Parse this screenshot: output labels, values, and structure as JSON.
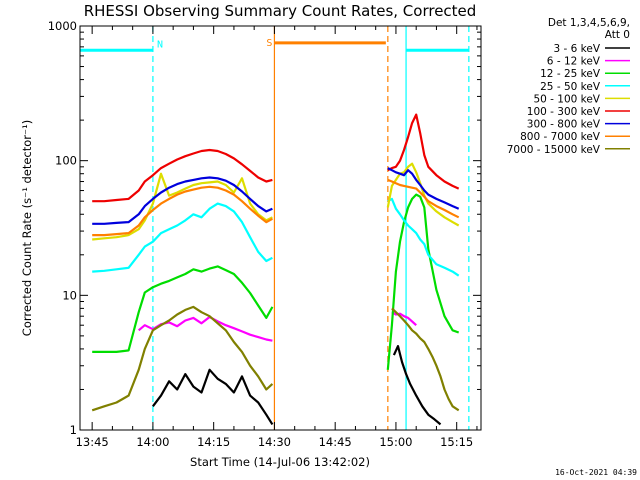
{
  "chart_data": {
    "type": "line",
    "title": "RHESSI Observing Summary Count Rates, Corrected",
    "xlabel": "Start Time (14-Jul-06 13:42:02)",
    "ylabel": "Corrected Count Rate (s⁻¹ detector⁻¹)",
    "yscale": "log",
    "ylim": [
      1,
      1000
    ],
    "xlim": [
      -3,
      96
    ],
    "x_unit": "minutes after 13:45",
    "xticks": [
      {
        "value": 0,
        "label": "13:45"
      },
      {
        "value": 15,
        "label": "14:00"
      },
      {
        "value": 30,
        "label": "14:15"
      },
      {
        "value": 45,
        "label": "14:30"
      },
      {
        "value": 60,
        "label": "14:45"
      },
      {
        "value": 75,
        "label": "15:00"
      },
      {
        "value": 90,
        "label": "15:15"
      }
    ],
    "yticks": [
      {
        "value": 1,
        "label": "1"
      },
      {
        "value": 10,
        "label": "10"
      },
      {
        "value": 100,
        "label": "100"
      },
      {
        "value": 1000,
        "label": "1000"
      }
    ],
    "legend_title": "Det 1,3,4,5,6,9,",
    "legend_subtitle": "Att 0",
    "legend_placement": "right",
    "series": [
      {
        "name": "3 - 6 keV",
        "color": "#000000",
        "segments": [
          {
            "x": [
              15,
              17,
              19,
              21,
              23,
              25,
              27,
              29,
              31,
              33,
              35,
              37,
              39,
              41,
              43,
              44.5
            ],
            "y": [
              1.5,
              1.8,
              2.3,
              2.0,
              2.6,
              2.1,
              1.9,
              2.8,
              2.4,
              2.2,
              1.9,
              2.5,
              1.8,
              1.6,
              1.3,
              1.1
            ]
          },
          {
            "x": [
              74.5,
              75.5,
              76.5,
              77.5,
              78.5,
              80,
              81.5,
              83,
              84.5,
              86
            ],
            "y": [
              3.6,
              4.2,
              3.2,
              2.6,
              2.2,
              1.8,
              1.5,
              1.3,
              1.2,
              1.1
            ]
          }
        ]
      },
      {
        "name": "6 - 12 keV",
        "color": "#ff00ff",
        "segments": [
          {
            "x": [
              11.5,
              13,
              15,
              17,
              19,
              21,
              23,
              25,
              27,
              29,
              31,
              33,
              35,
              37,
              39,
              41,
              43,
              44.5
            ],
            "y": [
              5.5,
              6.0,
              5.6,
              6.1,
              6.3,
              5.9,
              6.5,
              6.8,
              6.2,
              6.9,
              6.4,
              6.0,
              5.7,
              5.4,
              5.1,
              4.9,
              4.7,
              4.6
            ]
          },
          {
            "x": [
              74,
              75,
              76,
              77,
              78,
              79,
              80
            ],
            "y": [
              7.5,
              7.2,
              7.3,
              7.0,
              6.8,
              6.4,
              6.0
            ]
          }
        ]
      },
      {
        "name": "12 - 25 keV",
        "color": "#00dd00",
        "segments": [
          {
            "x": [
              0,
              3,
              6,
              9,
              11.5,
              13,
              15,
              17,
              19,
              21,
              23,
              25,
              27,
              29,
              31,
              33,
              35,
              37,
              39,
              41,
              43,
              44.5
            ],
            "y": [
              3.8,
              3.8,
              3.8,
              3.9,
              7.5,
              10.5,
              11.5,
              12.2,
              12.8,
              13.6,
              14.4,
              15.6,
              15.0,
              15.8,
              16.4,
              15.4,
              14.4,
              12.4,
              10.4,
              8.4,
              6.8,
              8.2
            ]
          },
          {
            "x": [
              73,
              74,
              75,
              76,
              77,
              78,
              79,
              80,
              81,
              82,
              83,
              85,
              87,
              89,
              90.5
            ],
            "y": [
              2.8,
              6.0,
              15.0,
              25.0,
              35.0,
              45.0,
              52.0,
              56.0,
              54.0,
              45.0,
              22.0,
              11.0,
              7.0,
              5.5,
              5.3
            ]
          }
        ]
      },
      {
        "name": "25 - 50 keV",
        "color": "#00ffff",
        "segments": [
          {
            "x": [
              0,
              3,
              6,
              9,
              11.5,
              13,
              15,
              17,
              19,
              21,
              23,
              25,
              27,
              29,
              31,
              33,
              35,
              37,
              39,
              41,
              43,
              44.5
            ],
            "y": [
              15.0,
              15.2,
              15.6,
              16.0,
              20.0,
              23.0,
              25.0,
              29.0,
              31.0,
              33.0,
              36.0,
              40.0,
              38.0,
              44.0,
              48.0,
              46.0,
              42.0,
              35.0,
              27.0,
              21.0,
              18.0,
              19.0
            ]
          },
          {
            "x": [
              73,
              74,
              75,
              76,
              77,
              78,
              79,
              80,
              81,
              82,
              83,
              85,
              87,
              89,
              90.5
            ],
            "y": [
              50.0,
              52.0,
              44.0,
              40.0,
              36.0,
              33.0,
              31.0,
              29.0,
              26.0,
              24.0,
              20.0,
              17.0,
              16.0,
              15.0,
              14.0
            ]
          }
        ]
      },
      {
        "name": "50 - 100 keV",
        "color": "#dddd00",
        "segments": [
          {
            "x": [
              0,
              3,
              6,
              9,
              11.5,
              13,
              15,
              17,
              19,
              21,
              23,
              25,
              27,
              29,
              31,
              33,
              35,
              37,
              39,
              41,
              43,
              44.5
            ],
            "y": [
              26,
              26.5,
              27,
              28,
              31,
              36,
              48,
              80,
              55,
              58,
              62,
              66,
              68,
              69,
              70,
              66,
              58,
              74,
              48,
              40,
              36,
              38
            ]
          },
          {
            "x": [
              73,
              74,
              75,
              76,
              77,
              78,
              79,
              80,
              81,
              82,
              83,
              85,
              87,
              89,
              90.5
            ],
            "y": [
              45,
              65,
              72,
              80,
              82,
              90,
              95,
              82,
              68,
              55,
              48,
              42,
              38,
              35,
              33
            ]
          }
        ]
      },
      {
        "name": "100 - 300 keV",
        "color": "#ee0000",
        "segments": [
          {
            "x": [
              0,
              3,
              6,
              9,
              11.5,
              13,
              15,
              17,
              19,
              21,
              23,
              25,
              27,
              29,
              31,
              33,
              35,
              37,
              39,
              41,
              43,
              44.5
            ],
            "y": [
              50,
              50,
              51,
              52,
              60,
              70,
              78,
              88,
              95,
              102,
              108,
              113,
              118,
              120,
              118,
              112,
              104,
              94,
              84,
              75,
              70,
              72
            ]
          },
          {
            "x": [
              73,
              74,
              75,
              76,
              77,
              78,
              79,
              80,
              81,
              82,
              83,
              85,
              87,
              89,
              90.5
            ],
            "y": [
              85,
              88,
              90,
              100,
              120,
              150,
              190,
              220,
              160,
              110,
              90,
              78,
              70,
              65,
              62
            ]
          }
        ]
      },
      {
        "name": "300 - 800 keV",
        "color": "#0000dd",
        "segments": [
          {
            "x": [
              0,
              3,
              6,
              9,
              11.5,
              13,
              15,
              17,
              19,
              21,
              23,
              25,
              27,
              29,
              31,
              33,
              35,
              37,
              39,
              41,
              43,
              44.5
            ],
            "y": [
              34,
              34,
              34.5,
              35,
              40,
              46,
              52,
              58,
              63,
              67,
              70,
              72,
              74,
              75,
              74,
              71,
              66,
              59,
              52,
              46,
              42,
              44
            ]
          },
          {
            "x": [
              73,
              74,
              75,
              76,
              77,
              78,
              79,
              80,
              81,
              82,
              83,
              85,
              87,
              89,
              90.5
            ],
            "y": [
              88,
              85,
              82,
              80,
              78,
              85,
              80,
              72,
              66,
              60,
              56,
              52,
              49,
              46,
              44
            ]
          }
        ]
      },
      {
        "name": "800 - 7000 keV",
        "color": "#ff8000",
        "segments": [
          {
            "x": [
              0,
              3,
              6,
              9,
              11.5,
              13,
              15,
              17,
              19,
              21,
              23,
              25,
              27,
              29,
              31,
              33,
              35,
              37,
              39,
              41,
              43,
              44.5
            ],
            "y": [
              28,
              28,
              28.5,
              29,
              33,
              38,
              43,
              48,
              52,
              56,
              59,
              61,
              63,
              64,
              63,
              60,
              56,
              50,
              44,
              39,
              35,
              37
            ]
          },
          {
            "x": [
              73,
              74,
              75,
              76,
              77,
              78,
              79,
              80,
              81,
              82,
              83,
              85,
              87,
              89,
              90.5
            ],
            "y": [
              72,
              70,
              68,
              66,
              65,
              64,
              63,
              62,
              58,
              54,
              50,
              46,
              43,
              40,
              38
            ]
          }
        ]
      },
      {
        "name": "7000 - 15000 keV",
        "color": "#808000",
        "segments": [
          {
            "x": [
              0,
              3,
              6,
              9,
              11.5,
              13,
              15,
              17,
              19,
              21,
              23,
              25,
              27,
              29,
              31,
              33,
              35,
              37,
              39,
              41,
              43,
              44.5
            ],
            "y": [
              1.4,
              1.5,
              1.6,
              1.8,
              2.8,
              4.0,
              5.5,
              6.0,
              6.5,
              7.2,
              7.8,
              8.2,
              7.5,
              7.0,
              6.2,
              5.5,
              4.5,
              3.8,
              3.0,
              2.5,
              2.0,
              2.2
            ]
          },
          {
            "x": [
              74,
              75,
              76,
              77,
              78,
              79,
              80,
              81,
              82,
              83,
              84,
              85,
              86,
              87,
              88,
              89,
              90.5
            ],
            "y": [
              8.0,
              7.5,
              7.0,
              6.5,
              6.0,
              5.5,
              5.2,
              4.8,
              4.5,
              4.0,
              3.5,
              3.0,
              2.5,
              2.0,
              1.7,
              1.5,
              1.4
            ]
          }
        ]
      }
    ],
    "annotations": {
      "night_periods": [
        {
          "x0": -3,
          "x1": 15
        },
        {
          "x0": 77.5,
          "x1": 93
        }
      ],
      "night_level": 660,
      "night_marker": {
        "label": "N",
        "x": 16
      },
      "night_color": "#00ffff",
      "saa_period": {
        "x0": 45,
        "x1": 73
      },
      "saa_level": 750,
      "saa_marker": {
        "label": "S",
        "x": 43
      },
      "saa_color": "#ff8000"
    },
    "timestamp": "16-Oct-2021 04:39"
  }
}
